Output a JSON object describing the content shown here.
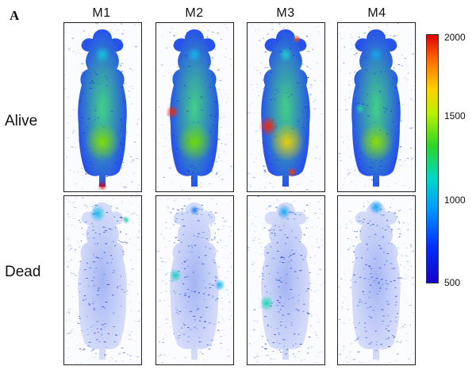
{
  "panel_letter": "A",
  "columns": [
    "M1",
    "M2",
    "M3",
    "M4"
  ],
  "rows": [
    "Alive",
    "Dead"
  ],
  "colorbar": {
    "ticks": [
      "2000",
      "1500",
      "1000",
      "500"
    ],
    "colors": [
      "#e00000",
      "#ff6a00",
      "#ffd200",
      "#2ad62a",
      "#00d8c8",
      "#009cff",
      "#0030ff",
      "#1500c8"
    ]
  },
  "icons": {
    "mouse": "mouse-silhouette-icon"
  }
}
